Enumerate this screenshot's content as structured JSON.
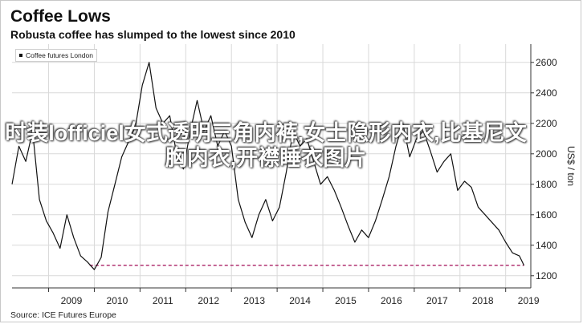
{
  "header": {
    "title": "Coffee Lows",
    "subtitle": "Robusta coffee has slumped to the lowest since 2010"
  },
  "legend": {
    "label": "Coffee futures London"
  },
  "source": "Source: ICE Futures Europe",
  "overlay_text": "时装lofficiel女式透明三角内裤,女士隐形内衣,比基尼文胸内衣,开襟睡衣图片",
  "colors": {
    "line": "#111111",
    "reference_line": "#b03070",
    "grid": "#d9d9d9"
  },
  "chart_data": {
    "type": "line",
    "title": "Coffee Lows",
    "subtitle": "Robusta coffee has slumped to the lowest since 2010",
    "ylabel": "US$ / ton",
    "y_axis_position": "right",
    "ylim": [
      1120,
      2720
    ],
    "yticks": [
      1200,
      1400,
      1600,
      1800,
      2000,
      2200,
      2400,
      2600
    ],
    "xlim": [
      2008.2,
      2019.55
    ],
    "xticks": [
      "2009",
      "2010",
      "2011",
      "2012",
      "2013",
      "2014",
      "2015",
      "2016",
      "2017",
      "2018",
      "2019"
    ],
    "grid": true,
    "legend_position": "top-left",
    "reference_line": {
      "y": 1268,
      "from_x": 2009.9,
      "to_x": 2019.4,
      "style": "dashed"
    },
    "series": [
      {
        "name": "Coffee futures London",
        "x": [
          2008.2,
          2008.35,
          2008.5,
          2008.65,
          2008.8,
          2008.95,
          2009.1,
          2009.25,
          2009.4,
          2009.55,
          2009.7,
          2009.85,
          2010.0,
          2010.15,
          2010.3,
          2010.45,
          2010.6,
          2010.75,
          2010.9,
          2011.05,
          2011.2,
          2011.35,
          2011.5,
          2011.65,
          2011.8,
          2011.95,
          2012.1,
          2012.25,
          2012.4,
          2012.55,
          2012.7,
          2012.85,
          2013.0,
          2013.15,
          2013.3,
          2013.45,
          2013.6,
          2013.75,
          2013.9,
          2014.05,
          2014.2,
          2014.35,
          2014.5,
          2014.65,
          2014.8,
          2014.95,
          2015.1,
          2015.25,
          2015.4,
          2015.55,
          2015.7,
          2015.85,
          2016.0,
          2016.15,
          2016.3,
          2016.45,
          2016.6,
          2016.75,
          2016.9,
          2017.05,
          2017.2,
          2017.35,
          2017.5,
          2017.65,
          2017.8,
          2017.95,
          2018.1,
          2018.25,
          2018.4,
          2018.55,
          2018.7,
          2018.85,
          2019.0,
          2019.15,
          2019.3,
          2019.4
        ],
        "values": [
          1800,
          2050,
          1950,
          2150,
          1700,
          1560,
          1480,
          1380,
          1600,
          1450,
          1330,
          1290,
          1240,
          1320,
          1620,
          1800,
          1980,
          2080,
          2180,
          2450,
          2600,
          2300,
          2200,
          2250,
          2000,
          1900,
          2150,
          2350,
          2150,
          2250,
          2050,
          2150,
          2050,
          1700,
          1550,
          1450,
          1600,
          1700,
          1560,
          1650,
          1880,
          2150,
          2050,
          2100,
          1950,
          1800,
          1850,
          1760,
          1650,
          1530,
          1420,
          1500,
          1450,
          1560,
          1700,
          1850,
          2050,
          2200,
          1980,
          2100,
          2150,
          2020,
          1880,
          1950,
          2000,
          1760,
          1820,
          1780,
          1650,
          1600,
          1550,
          1500,
          1420,
          1350,
          1330,
          1268
        ]
      }
    ]
  }
}
